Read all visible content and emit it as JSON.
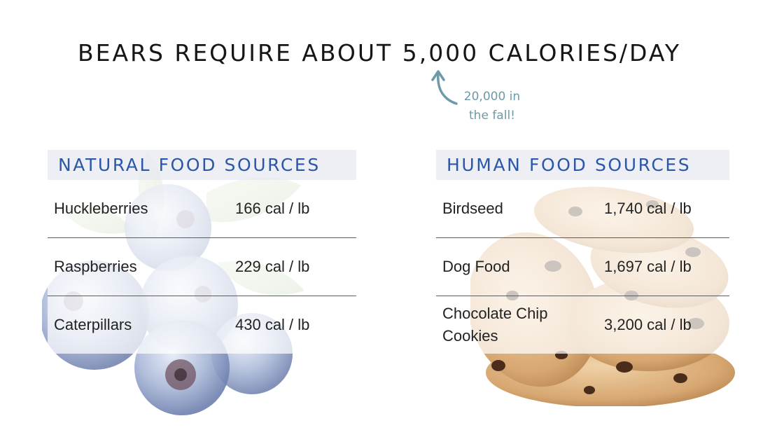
{
  "title": "BEARS REQUIRE ABOUT 5,000 CALORIES/DAY",
  "note": {
    "line1": "20,000 in",
    "line2": "the fall!"
  },
  "natural": {
    "heading": "NATURAL FOOD SOURCES",
    "rows": [
      {
        "name": "Huckleberries",
        "value": "166 cal / lb"
      },
      {
        "name": "Raspberries",
        "value": "229 cal / lb"
      },
      {
        "name": "Caterpillars",
        "value": "430 cal / lb"
      }
    ]
  },
  "human": {
    "heading": "HUMAN FOOD SOURCES",
    "rows": [
      {
        "name": "Birdseed",
        "value": "1,740 cal / lb"
      },
      {
        "name": "Dog Food",
        "value": "1,697 cal / lb"
      },
      {
        "name_line1": "Chocolate Chip",
        "name_line2": "Cookies",
        "value": "3,200 cal / lb"
      }
    ]
  },
  "colors": {
    "heading_text": "#2b57a8",
    "heading_bg": "#ebeef3",
    "note": "#6d9aa6",
    "divider": "#5c5c5c"
  },
  "icons": {
    "arrow": "curved-arrow-icon",
    "left_art": "blueberries-illustration",
    "right_art": "cookies-illustration"
  }
}
